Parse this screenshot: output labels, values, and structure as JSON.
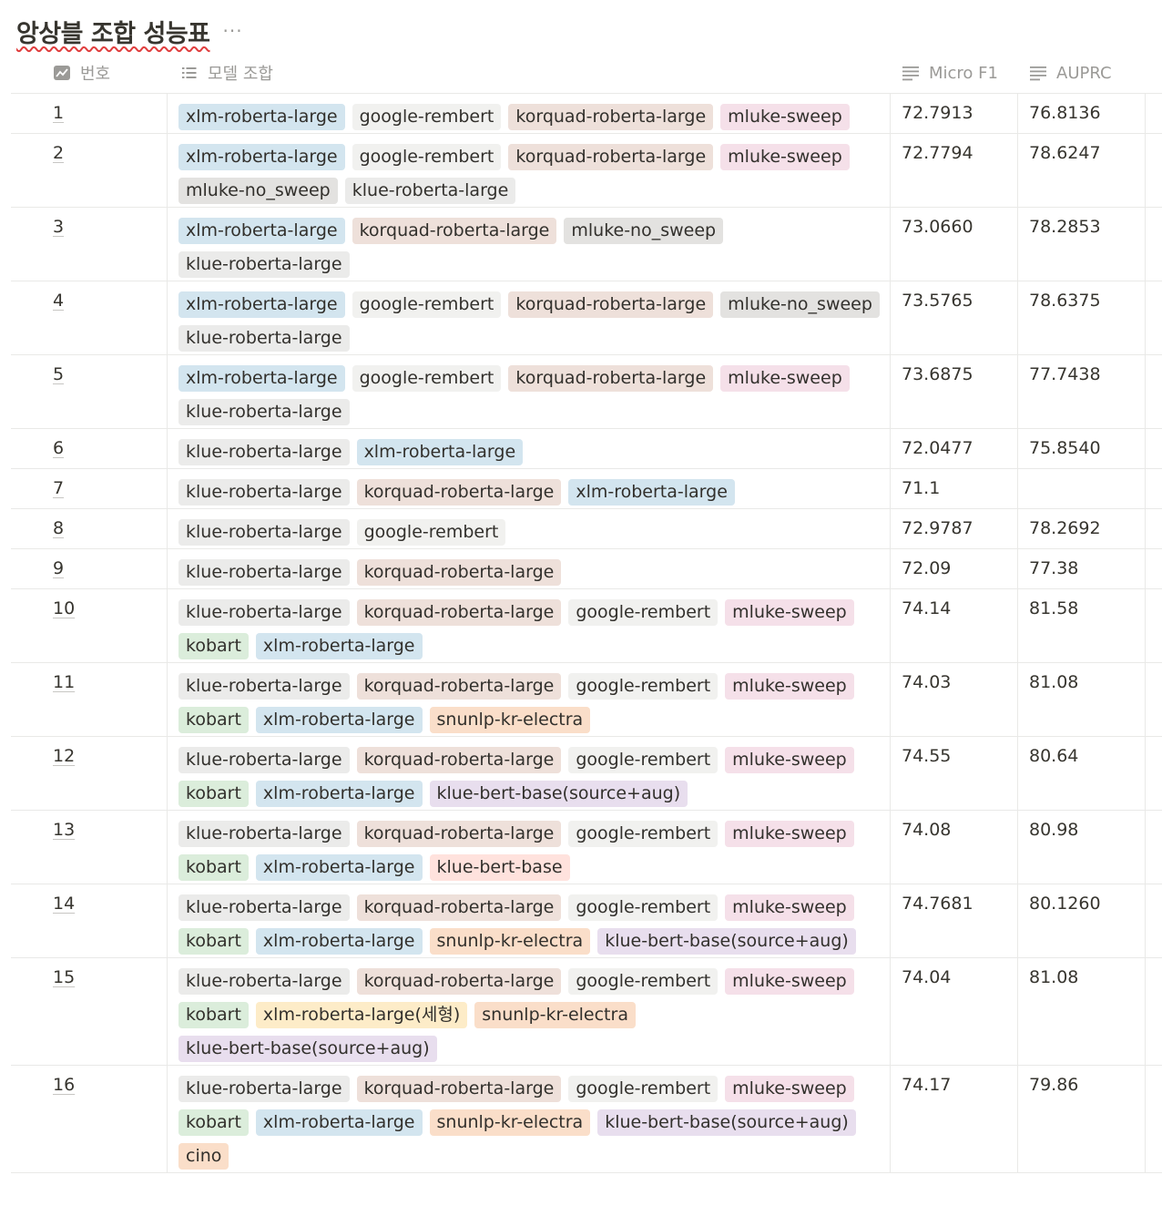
{
  "page": {
    "title": "앙상블 조합 성능표",
    "more_label": "···"
  },
  "columns": {
    "num": {
      "label": "번호",
      "icon": "formula-icon"
    },
    "models": {
      "label": "모델 조합",
      "icon": "list-icon"
    },
    "f1": {
      "label": "Micro F1",
      "icon": "text-lines-icon"
    },
    "auprc": {
      "label": "AUPRC",
      "icon": "text-lines-icon"
    }
  },
  "tag_colors": {
    "blue": "#d3e5ef",
    "default": "#ebebea",
    "lightgray": "#f1f1ef",
    "brown": "#eee0da",
    "pink": "#f5e0e9",
    "gray": "#e3e2e0",
    "green": "#dbeddb",
    "orange": "#fadec9",
    "purple": "#e8deee",
    "yellow": "#fdecc8",
    "red": "#ffe2dd"
  },
  "rows": [
    {
      "num": "1",
      "f1": "72.7913",
      "auprc": "76.8136",
      "tags": [
        {
          "label": "xlm-roberta-large",
          "color": "blue"
        },
        {
          "label": "google-rembert",
          "color": "lightgray"
        },
        {
          "label": "korquad-roberta-large",
          "color": "brown"
        },
        {
          "label": "mluke-sweep",
          "color": "pink"
        }
      ]
    },
    {
      "num": "2",
      "f1": "72.7794",
      "auprc": "78.6247",
      "tags": [
        {
          "label": "xlm-roberta-large",
          "color": "blue"
        },
        {
          "label": "google-rembert",
          "color": "lightgray"
        },
        {
          "label": "korquad-roberta-large",
          "color": "brown"
        },
        {
          "label": "mluke-sweep",
          "color": "pink"
        },
        {
          "label": "mluke-no_sweep",
          "color": "gray"
        },
        {
          "label": "klue-roberta-large",
          "color": "default"
        }
      ]
    },
    {
      "num": "3",
      "f1": "73.0660",
      "auprc": "78.2853",
      "tags": [
        {
          "label": "xlm-roberta-large",
          "color": "blue"
        },
        {
          "label": "korquad-roberta-large",
          "color": "brown"
        },
        {
          "label": "mluke-no_sweep",
          "color": "gray"
        },
        {
          "label": "klue-roberta-large",
          "color": "default"
        }
      ]
    },
    {
      "num": "4",
      "f1": "73.5765",
      "auprc": "78.6375",
      "tags": [
        {
          "label": "xlm-roberta-large",
          "color": "blue"
        },
        {
          "label": "google-rembert",
          "color": "lightgray"
        },
        {
          "label": "korquad-roberta-large",
          "color": "brown"
        },
        {
          "label": "mluke-no_sweep",
          "color": "gray"
        },
        {
          "label": "klue-roberta-large",
          "color": "default"
        }
      ]
    },
    {
      "num": "5",
      "f1": "73.6875",
      "auprc": "77.7438",
      "tags": [
        {
          "label": "xlm-roberta-large",
          "color": "blue"
        },
        {
          "label": "google-rembert",
          "color": "lightgray"
        },
        {
          "label": "korquad-roberta-large",
          "color": "brown"
        },
        {
          "label": "mluke-sweep",
          "color": "pink"
        },
        {
          "label": "klue-roberta-large",
          "color": "default"
        }
      ]
    },
    {
      "num": "6",
      "f1": "72.0477",
      "auprc": "75.8540",
      "tags": [
        {
          "label": "klue-roberta-large",
          "color": "default"
        },
        {
          "label": "xlm-roberta-large",
          "color": "blue"
        }
      ]
    },
    {
      "num": "7",
      "f1": "71.1",
      "auprc": "",
      "tags": [
        {
          "label": "klue-roberta-large",
          "color": "default"
        },
        {
          "label": "korquad-roberta-large",
          "color": "brown"
        },
        {
          "label": "xlm-roberta-large",
          "color": "blue"
        }
      ]
    },
    {
      "num": "8",
      "f1": "72.9787",
      "auprc": "78.2692",
      "tags": [
        {
          "label": "klue-roberta-large",
          "color": "default"
        },
        {
          "label": "google-rembert",
          "color": "lightgray"
        }
      ]
    },
    {
      "num": "9",
      "f1": "72.09",
      "auprc": "77.38",
      "tags": [
        {
          "label": "klue-roberta-large",
          "color": "default"
        },
        {
          "label": "korquad-roberta-large",
          "color": "brown"
        }
      ]
    },
    {
      "num": "10",
      "f1": "74.14",
      "auprc": "81.58",
      "tags": [
        {
          "label": "klue-roberta-large",
          "color": "default"
        },
        {
          "label": "korquad-roberta-large",
          "color": "brown"
        },
        {
          "label": "google-rembert",
          "color": "lightgray"
        },
        {
          "label": "mluke-sweep",
          "color": "pink"
        },
        {
          "label": "kobart",
          "color": "green"
        },
        {
          "label": "xlm-roberta-large",
          "color": "blue"
        }
      ]
    },
    {
      "num": "11",
      "f1": "74.03",
      "auprc": "81.08",
      "tags": [
        {
          "label": "klue-roberta-large",
          "color": "default"
        },
        {
          "label": "korquad-roberta-large",
          "color": "brown"
        },
        {
          "label": "google-rembert",
          "color": "lightgray"
        },
        {
          "label": "mluke-sweep",
          "color": "pink"
        },
        {
          "label": "kobart",
          "color": "green"
        },
        {
          "label": "xlm-roberta-large",
          "color": "blue"
        },
        {
          "label": "snunlp-kr-electra",
          "color": "orange"
        }
      ]
    },
    {
      "num": "12",
      "f1": "74.55",
      "auprc": "80.64",
      "tags": [
        {
          "label": "klue-roberta-large",
          "color": "default"
        },
        {
          "label": "korquad-roberta-large",
          "color": "brown"
        },
        {
          "label": "google-rembert",
          "color": "lightgray"
        },
        {
          "label": "mluke-sweep",
          "color": "pink"
        },
        {
          "label": "kobart",
          "color": "green"
        },
        {
          "label": "xlm-roberta-large",
          "color": "blue"
        },
        {
          "label": "klue-bert-base(source+aug)",
          "color": "purple"
        }
      ]
    },
    {
      "num": "13",
      "f1": "74.08",
      "auprc": "80.98",
      "tags": [
        {
          "label": "klue-roberta-large",
          "color": "default"
        },
        {
          "label": "korquad-roberta-large",
          "color": "brown"
        },
        {
          "label": "google-rembert",
          "color": "lightgray"
        },
        {
          "label": "mluke-sweep",
          "color": "pink"
        },
        {
          "label": "kobart",
          "color": "green"
        },
        {
          "label": "xlm-roberta-large",
          "color": "blue"
        },
        {
          "label": "klue-bert-base",
          "color": "red"
        }
      ]
    },
    {
      "num": "14",
      "f1": "74.7681",
      "auprc": "80.1260",
      "tags": [
        {
          "label": "klue-roberta-large",
          "color": "default"
        },
        {
          "label": "korquad-roberta-large",
          "color": "brown"
        },
        {
          "label": "google-rembert",
          "color": "lightgray"
        },
        {
          "label": "mluke-sweep",
          "color": "pink"
        },
        {
          "label": "kobart",
          "color": "green"
        },
        {
          "label": "xlm-roberta-large",
          "color": "blue"
        },
        {
          "label": "snunlp-kr-electra",
          "color": "orange"
        },
        {
          "label": "klue-bert-base(source+aug)",
          "color": "purple"
        }
      ]
    },
    {
      "num": "15",
      "f1": "74.04",
      "auprc": "81.08",
      "tags": [
        {
          "label": "klue-roberta-large",
          "color": "default"
        },
        {
          "label": "korquad-roberta-large",
          "color": "brown"
        },
        {
          "label": "google-rembert",
          "color": "lightgray"
        },
        {
          "label": "mluke-sweep",
          "color": "pink"
        },
        {
          "label": "kobart",
          "color": "green"
        },
        {
          "label": "xlm-roberta-large(세형)",
          "color": "yellow"
        },
        {
          "label": "snunlp-kr-electra",
          "color": "orange"
        },
        {
          "label": "klue-bert-base(source+aug)",
          "color": "purple"
        }
      ]
    },
    {
      "num": "16",
      "f1": "74.17",
      "auprc": "79.86",
      "tags": [
        {
          "label": "klue-roberta-large",
          "color": "default"
        },
        {
          "label": "korquad-roberta-large",
          "color": "brown"
        },
        {
          "label": "google-rembert",
          "color": "lightgray"
        },
        {
          "label": "mluke-sweep",
          "color": "pink"
        },
        {
          "label": "kobart",
          "color": "green"
        },
        {
          "label": "xlm-roberta-large",
          "color": "blue"
        },
        {
          "label": "snunlp-kr-electra",
          "color": "orange"
        },
        {
          "label": "klue-bert-base(source+aug)",
          "color": "purple"
        },
        {
          "label": "cino",
          "color": "orange"
        }
      ]
    }
  ]
}
